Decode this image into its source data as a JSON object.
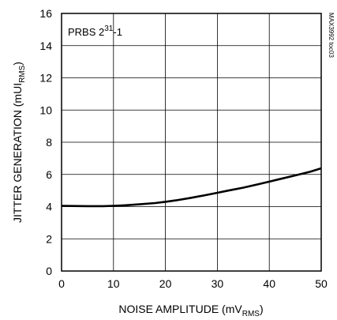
{
  "chart_data": {
    "type": "line",
    "xlabel": {
      "main": "NOISE AMPLITUDE (mV",
      "sub": "RMS",
      "end": ")"
    },
    "ylabel": {
      "main": "JITTER GENERATION (mUI",
      "sub": "RMS",
      "end": ")"
    },
    "xlim": [
      0,
      50
    ],
    "ylim": [
      0,
      16
    ],
    "x_ticks": [
      "0",
      "10",
      "20",
      "30",
      "40",
      "50"
    ],
    "y_ticks": [
      "0",
      "2",
      "4",
      "6",
      "8",
      "10",
      "12",
      "14",
      "16"
    ],
    "grid": true,
    "annotation": {
      "main": "PRBS 2",
      "sup": "31",
      "end": "-1"
    },
    "figure_id": "MAX3992 toc03",
    "series": [
      {
        "x": [
          0,
          2,
          5,
          8,
          10,
          12,
          15,
          18,
          20,
          22,
          25,
          28,
          30,
          32,
          35,
          38,
          40,
          42,
          45,
          48,
          50
        ],
        "y": [
          4.05,
          4.04,
          4.03,
          4.03,
          4.05,
          4.08,
          4.14,
          4.22,
          4.3,
          4.39,
          4.55,
          4.73,
          4.86,
          4.99,
          5.18,
          5.4,
          5.55,
          5.71,
          5.94,
          6.18,
          6.38
        ]
      }
    ]
  }
}
